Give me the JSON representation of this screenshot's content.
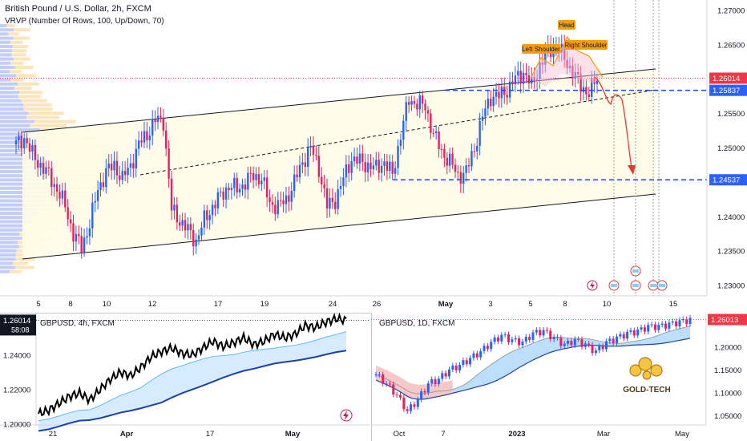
{
  "main": {
    "title": "British Pound / U.S. Dollar, 2h, FXCM",
    "indicator": "VRVP (Number Of Rows, 100, Up/Down, 70)",
    "annotations": {
      "head": "Head",
      "left_shoulder": "Left Shoulder",
      "right_shoulder": "Right Shoulder"
    },
    "price_axis": [
      "1.27000",
      "1.26500",
      "1.25500",
      "1.25000",
      "1.24000",
      "1.23500",
      "1.23000"
    ],
    "price_badges": {
      "current": "1.26014",
      "neckline": "1.25837",
      "target": "1.24537"
    },
    "time_axis": [
      "5",
      "8",
      "10",
      "12",
      "17",
      "19",
      "24",
      "26",
      "May",
      "3",
      "5",
      "8",
      "10",
      "15"
    ]
  },
  "bottom_left": {
    "title": "GBPUSD, 4h, FXCM",
    "price_axis": [
      "1.24000",
      "1.22000",
      "1.20000"
    ],
    "badge_price": "1.26014",
    "badge_time": "58:08",
    "time_axis": [
      "21",
      "Apr",
      "17",
      "May"
    ]
  },
  "bottom_right": {
    "title": "GBPUSD, 1D, FXCM",
    "price_axis": [
      "1.20000",
      "1.15000",
      "1.10000",
      "1.05000"
    ],
    "badge_price": "1.26013",
    "time_axis": [
      "Oct",
      "7",
      "2023",
      "Mar",
      "May"
    ],
    "logo_text": "GOLD-TECH"
  },
  "colors": {
    "up_candle": "#2962ff",
    "down_candle": "#e91e63",
    "channel_fill": "#fffde7",
    "neck_line": "#1e40ff",
    "arrow": "#e53935",
    "label_bg": "#f59e0b",
    "badge_red": "#f23645",
    "badge_blue": "#2962ff"
  },
  "chart_data": [
    {
      "type": "candlestick",
      "title": "British Pound / U.S. Dollar, 2h, FXCM",
      "ylim": [
        1.2285,
        1.2715
      ],
      "y_ticks": [
        1.27,
        1.265,
        1.255,
        1.25,
        1.24,
        1.235,
        1.23
      ],
      "x_tick_labels": [
        "5",
        "8",
        "10",
        "12",
        "17",
        "19",
        "24",
        "26",
        "May",
        "3",
        "5",
        "8",
        "10",
        "15"
      ],
      "close_path": [
        1.2505,
        1.2515,
        1.249,
        1.2475,
        1.246,
        1.244,
        1.2415,
        1.2375,
        1.2355,
        1.239,
        1.244,
        1.2465,
        1.2475,
        1.2455,
        1.2475,
        1.2505,
        1.252,
        1.254,
        1.254,
        1.241,
        1.2395,
        1.238,
        1.2365,
        1.2395,
        1.2415,
        1.243,
        1.2445,
        1.244,
        1.245,
        1.246,
        1.2455,
        1.242,
        1.2415,
        1.2425,
        1.245,
        1.248,
        1.25,
        1.247,
        1.2415,
        1.2425,
        1.2455,
        1.2485,
        1.248,
        1.2475,
        1.247,
        1.248,
        1.246,
        1.252,
        1.257,
        1.2565,
        1.256,
        1.252,
        1.2495,
        1.248,
        1.246,
        1.2465,
        1.25,
        1.2545,
        1.2575,
        1.2575,
        1.2585,
        1.26,
        1.261,
        1.259,
        1.262,
        1.264,
        1.265,
        1.263,
        1.261,
        1.259,
        1.258,
        1.2601
      ],
      "levels": {
        "current": 1.26014,
        "neckline": 1.25837,
        "target": 1.24537
      },
      "pattern_labels": [
        "Left Shoulder",
        "Head",
        "Right Shoulder"
      ]
    },
    {
      "type": "line",
      "title": "GBPUSD, 4h, FXCM",
      "ylim": [
        1.1995,
        1.2645
      ],
      "y_ticks": [
        1.24,
        1.22,
        1.2
      ],
      "x_tick_labels": [
        "21",
        "Apr",
        "17",
        "May"
      ],
      "values": [
        1.206,
        1.208,
        1.212,
        1.216,
        1.218,
        1.214,
        1.22,
        1.226,
        1.23,
        1.228,
        1.233,
        1.239,
        1.242,
        1.244,
        1.241,
        1.24,
        1.244,
        1.248,
        1.245,
        1.247,
        1.25,
        1.246,
        1.248,
        1.252,
        1.25,
        1.252,
        1.257,
        1.256,
        1.259,
        1.261,
        1.2601
      ]
    },
    {
      "type": "candlestick",
      "title": "GBPUSD, 1D, FXCM",
      "ylim": [
        1.03,
        1.275
      ],
      "y_ticks": [
        1.2,
        1.15,
        1.1,
        1.05
      ],
      "x_tick_labels": [
        "Oct",
        "7",
        "2023",
        "Mar",
        "May"
      ],
      "close_path": [
        1.14,
        1.12,
        1.095,
        1.06,
        1.085,
        1.12,
        1.13,
        1.15,
        1.16,
        1.175,
        1.19,
        1.21,
        1.225,
        1.215,
        1.21,
        1.23,
        1.235,
        1.22,
        1.205,
        1.215,
        1.205,
        1.19,
        1.21,
        1.22,
        1.23,
        1.235,
        1.245,
        1.245,
        1.25,
        1.255,
        1.26
      ]
    }
  ]
}
